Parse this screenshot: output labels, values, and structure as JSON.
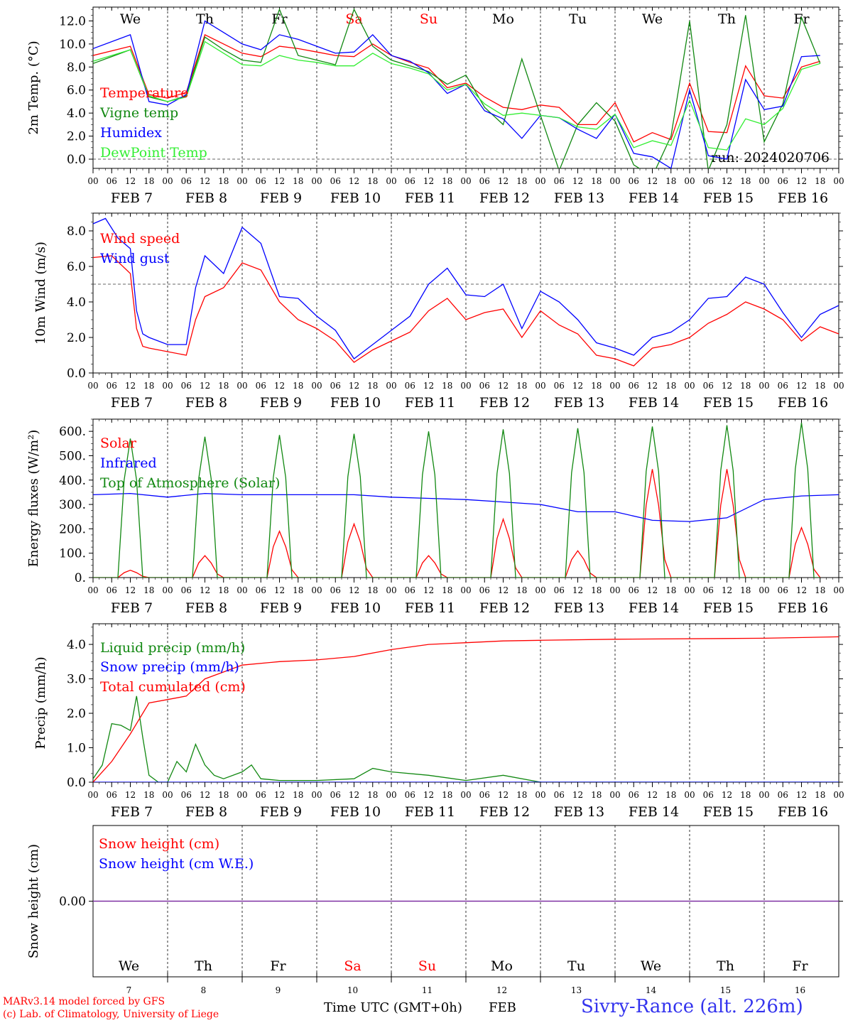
{
  "meta": {
    "run_label": "run: 2024020706",
    "credit_line1": "MARv3.14 model forced by GFS",
    "credit_line2": "(c) Lab. of Climatology, University of Liege",
    "xaxis_title": "Time UTC (GMT+0h)",
    "month_label": "FEB",
    "station": "Sivry-Rance (alt. 226m)"
  },
  "colors": {
    "red": "#ff0000",
    "green": "#118811",
    "lightgreen": "#33ee33",
    "blue": "#0000ff",
    "purple": "#7a2aa0"
  },
  "time_axis": {
    "hour_ticks": [
      "00",
      "06",
      "12",
      "18"
    ],
    "date_labels": [
      "FEB 7",
      "FEB 8",
      "FEB 9",
      "FEB 10",
      "FEB 11",
      "FEB 12",
      "FEB 13",
      "FEB 14",
      "FEB 15",
      "FEB 16"
    ],
    "weekdays": [
      "We",
      "Th",
      "Fr",
      "Sa",
      "Su",
      "Mo",
      "Tu",
      "We",
      "Th",
      "Fr"
    ],
    "weekend_flags": [
      false,
      false,
      false,
      true,
      true,
      false,
      false,
      false,
      false,
      false
    ],
    "day_numbers": [
      "7",
      "8",
      "9",
      "10",
      "11",
      "12",
      "13",
      "14",
      "15",
      "16"
    ]
  },
  "chart_data": [
    {
      "type": "line",
      "ylabel": "2m Temp. (°C)",
      "ylim": [
        -0.8,
        13.2
      ],
      "yticks": [
        0.0,
        2.0,
        4.0,
        6.0,
        8.0,
        10.0,
        12.0
      ],
      "ytick_labels": [
        "0.0",
        "2.0",
        "4.0",
        "6.0",
        "8.0",
        "10.0",
        "12.0"
      ],
      "x_unit": "hours since FEB 7 00 UTC",
      "hline": 0,
      "series": [
        {
          "name": "Temperature",
          "color": "red",
          "x": [
            0,
            12,
            18,
            24,
            30,
            36,
            42,
            48,
            54,
            60,
            66,
            72,
            78,
            84,
            90,
            96,
            102,
            108,
            114,
            120,
            126,
            132,
            138,
            144,
            150,
            156,
            162,
            168,
            174,
            180,
            186,
            192,
            198,
            204,
            210,
            216,
            222,
            228,
            234
          ],
          "y": [
            9.0,
            9.8,
            5.6,
            5.3,
            5.8,
            10.8,
            10.0,
            9.2,
            8.9,
            9.8,
            9.6,
            9.3,
            9.0,
            8.9,
            10.0,
            9.0,
            8.4,
            7.9,
            6.2,
            6.6,
            5.4,
            4.5,
            4.3,
            4.7,
            4.5,
            3.0,
            3.0,
            4.9,
            1.5,
            2.3,
            1.7,
            6.6,
            2.4,
            2.3,
            8.1,
            5.5,
            5.3,
            8.0,
            8.5
          ]
        },
        {
          "name": "Vigne temp",
          "color": "green",
          "x": [
            0,
            12,
            18,
            24,
            30,
            36,
            42,
            48,
            54,
            60,
            66,
            72,
            78,
            84,
            90,
            96,
            102,
            108,
            114,
            120,
            126,
            132,
            138,
            144,
            150,
            156,
            162,
            168,
            174,
            180,
            186,
            192,
            198,
            204,
            210,
            216,
            222,
            228,
            234
          ],
          "y": [
            8.3,
            9.5,
            5.4,
            5.0,
            5.5,
            10.6,
            9.5,
            8.6,
            8.4,
            13.0,
            9.0,
            8.6,
            8.2,
            13.0,
            9.8,
            8.6,
            8.1,
            7.6,
            6.5,
            7.3,
            4.5,
            3.0,
            8.7,
            3.8,
            -1.0,
            3.0,
            4.9,
            3.3,
            -0.5,
            -1.5,
            2.0,
            12.0,
            -1.0,
            3.0,
            12.5,
            1.5,
            4.8,
            12.3,
            8.3
          ]
        },
        {
          "name": "Humidex",
          "color": "blue",
          "x": [
            0,
            12,
            18,
            24,
            30,
            36,
            42,
            48,
            54,
            60,
            66,
            72,
            78,
            84,
            90,
            96,
            102,
            108,
            114,
            120,
            126,
            132,
            138,
            144,
            150,
            156,
            162,
            168,
            174,
            180,
            186,
            192,
            198,
            204,
            210,
            216,
            222,
            228,
            234
          ],
          "y": [
            9.6,
            10.8,
            5.0,
            4.7,
            5.6,
            12.0,
            11.0,
            10.0,
            9.5,
            10.8,
            10.4,
            9.8,
            9.2,
            9.3,
            10.8,
            9.0,
            8.5,
            7.5,
            5.7,
            6.5,
            4.2,
            3.5,
            1.8,
            3.8,
            3.6,
            2.6,
            1.8,
            3.9,
            0.5,
            0.2,
            -0.8,
            6.0,
            0.3,
            0.0,
            6.9,
            4.3,
            4.6,
            8.9,
            9.0
          ]
        },
        {
          "name": "DewPoint Temp",
          "color": "lightgreen",
          "x": [
            0,
            12,
            18,
            24,
            30,
            36,
            42,
            48,
            54,
            60,
            66,
            72,
            78,
            84,
            90,
            96,
            102,
            108,
            114,
            120,
            126,
            132,
            138,
            144,
            150,
            156,
            162,
            168,
            174,
            180,
            186,
            192,
            198,
            204,
            210,
            216,
            222,
            228,
            234
          ],
          "y": [
            8.5,
            9.5,
            5.5,
            5.0,
            5.4,
            10.2,
            9.2,
            8.2,
            8.1,
            9.0,
            8.6,
            8.4,
            8.1,
            8.1,
            9.2,
            8.3,
            7.9,
            7.4,
            6.0,
            6.5,
            4.8,
            3.8,
            4.0,
            3.8,
            3.6,
            2.8,
            2.6,
            3.9,
            1.0,
            1.6,
            1.2,
            5.1,
            1.0,
            0.8,
            3.5,
            3.0,
            4.4,
            7.8,
            8.3
          ]
        }
      ]
    },
    {
      "type": "line",
      "ylabel": "10m Wind (m/s)",
      "ylim": [
        0,
        9.0
      ],
      "yticks": [
        0.0,
        2.0,
        4.0,
        6.0,
        8.0
      ],
      "ytick_labels": [
        "0.0",
        "2.0",
        "4.0",
        "6.0",
        "8.0"
      ],
      "x_unit": "hours since FEB 7 00 UTC",
      "hline": 5,
      "series": [
        {
          "name": "Wind speed",
          "color": "red",
          "x": [
            0,
            6,
            12,
            14,
            16,
            18,
            24,
            30,
            33,
            36,
            42,
            48,
            54,
            60,
            66,
            72,
            78,
            84,
            90,
            96,
            102,
            108,
            114,
            120,
            126,
            132,
            138,
            144,
            150,
            156,
            162,
            168,
            174,
            180,
            186,
            192,
            198,
            204,
            210,
            216,
            222,
            228,
            234,
            240
          ],
          "y": [
            6.5,
            6.6,
            5.6,
            2.5,
            1.5,
            1.4,
            1.2,
            1.0,
            3.0,
            4.3,
            4.8,
            6.2,
            5.8,
            4.0,
            3.0,
            2.5,
            1.8,
            0.6,
            1.3,
            1.8,
            2.3,
            3.5,
            4.2,
            3.0,
            3.4,
            3.6,
            2.0,
            3.5,
            2.7,
            2.2,
            1.0,
            0.8,
            0.4,
            1.4,
            1.6,
            2.0,
            2.8,
            3.3,
            4.0,
            3.6,
            3.0,
            1.8,
            2.6,
            2.2
          ]
        },
        {
          "name": "Wind gust",
          "color": "blue",
          "x": [
            0,
            4,
            8,
            12,
            14,
            16,
            18,
            24,
            30,
            33,
            36,
            42,
            48,
            54,
            60,
            66,
            72,
            78,
            84,
            90,
            96,
            102,
            108,
            114,
            120,
            126,
            132,
            138,
            144,
            150,
            156,
            162,
            168,
            174,
            180,
            186,
            192,
            198,
            204,
            210,
            216,
            222,
            228,
            234,
            240
          ],
          "y": [
            8.4,
            8.7,
            7.6,
            7.0,
            3.5,
            2.2,
            2.0,
            1.6,
            1.6,
            4.8,
            6.6,
            5.6,
            8.2,
            7.3,
            4.3,
            4.2,
            3.2,
            2.4,
            0.8,
            1.6,
            2.4,
            3.2,
            5.0,
            5.9,
            4.4,
            4.3,
            5.0,
            2.5,
            4.6,
            4.0,
            3.0,
            1.7,
            1.4,
            1.0,
            2.0,
            2.3,
            3.0,
            4.2,
            4.3,
            5.4,
            5.0,
            3.4,
            2.0,
            3.3,
            3.8
          ]
        }
      ]
    },
    {
      "type": "line",
      "ylabel": "Energy fluxes (W/m²)",
      "ylim": [
        0,
        650
      ],
      "yticks": [
        0,
        100,
        200,
        300,
        400,
        500,
        600
      ],
      "ytick_labels": [
        "0.",
        "100.",
        "200.",
        "300.",
        "400.",
        "500.",
        "600."
      ],
      "x_unit": "hours since FEB 7 00 UTC",
      "series": [
        {
          "name": "Solar",
          "color": "red",
          "x": [
            0,
            8,
            10,
            12,
            14,
            16,
            18
          ],
          "y": [
            0,
            0,
            20,
            30,
            20,
            5,
            0
          ],
          "daily_peaks": [
            30,
            90,
            190,
            220,
            90,
            240,
            110,
            445,
            445,
            205
          ],
          "daily_offsets_h": [
            0,
            24,
            48,
            72,
            96,
            120,
            144,
            168,
            192,
            216
          ]
        },
        {
          "name": "Infrared",
          "color": "blue",
          "x": [
            0,
            12,
            24,
            36,
            48,
            60,
            72,
            84,
            96,
            108,
            120,
            132,
            144,
            156,
            168,
            180,
            192,
            204,
            216,
            228,
            240
          ],
          "y": [
            340,
            345,
            330,
            345,
            340,
            340,
            340,
            340,
            330,
            325,
            320,
            310,
            300,
            270,
            270,
            235,
            230,
            245,
            320,
            335,
            340
          ]
        },
        {
          "name": "Top of Atmosphere (Solar)",
          "color": "green",
          "x": [
            0,
            8,
            10,
            12,
            14,
            16,
            18
          ],
          "y": [
            0,
            0,
            400,
            570,
            400,
            0,
            0
          ],
          "daily_peaks": [
            570,
            578,
            585,
            590,
            600,
            608,
            613,
            620,
            625,
            635
          ],
          "daily_offsets_h": [
            0,
            24,
            48,
            72,
            96,
            120,
            144,
            168,
            192,
            216
          ]
        }
      ]
    },
    {
      "type": "line",
      "ylabel": "Precip (mm/h)",
      "ylim": [
        0,
        4.6
      ],
      "yticks": [
        0.0,
        1.0,
        2.0,
        3.0,
        4.0
      ],
      "ytick_labels": [
        "0.0",
        "1.0",
        "2.0",
        "3.0",
        "4.0"
      ],
      "x_unit": "hours since FEB 7 00 UTC",
      "series": [
        {
          "name": "Liquid precip (mm/h)",
          "color": "green",
          "x": [
            0,
            3,
            6,
            9,
            12,
            14,
            16,
            18,
            21,
            24,
            27,
            30,
            33,
            36,
            39,
            42,
            48,
            51,
            54,
            60,
            72,
            84,
            90,
            96,
            108,
            120,
            132,
            144,
            168,
            240
          ],
          "y": [
            0.1,
            0.5,
            1.7,
            1.65,
            1.5,
            2.5,
            1.3,
            0.2,
            0.0,
            0.0,
            0.6,
            0.3,
            1.1,
            0.5,
            0.2,
            0.1,
            0.3,
            0.5,
            0.1,
            0.05,
            0.05,
            0.1,
            0.4,
            0.3,
            0.2,
            0.05,
            0.2,
            0.0,
            0.0,
            0.0
          ]
        },
        {
          "name": "Snow precip (mm/h)",
          "color": "blue",
          "x": [
            0,
            240
          ],
          "y": [
            0,
            0
          ]
        },
        {
          "name": "Total cumulated (cm)",
          "color": "red",
          "x": [
            0,
            6,
            12,
            18,
            24,
            30,
            36,
            42,
            48,
            60,
            72,
            84,
            96,
            108,
            120,
            132,
            144,
            168,
            216,
            240
          ],
          "y": [
            0.0,
            0.6,
            1.4,
            2.3,
            2.4,
            2.5,
            3.0,
            3.2,
            3.4,
            3.5,
            3.55,
            3.65,
            3.85,
            4.0,
            4.05,
            4.1,
            4.12,
            4.15,
            4.18,
            4.22
          ]
        }
      ]
    },
    {
      "type": "line",
      "ylabel": "Snow height (cm)",
      "ylim": [
        -1,
        1
      ],
      "yticks": [
        0.0
      ],
      "ytick_labels": [
        "0.00"
      ],
      "x_unit": "hours since FEB 7 00 UTC",
      "series": [
        {
          "name": "Snow height (cm)",
          "color": "red",
          "x": [
            0,
            240
          ],
          "y": [
            0,
            0
          ]
        },
        {
          "name": "Snow height (cm W.E.)",
          "color": "blue",
          "x": [
            0,
            240
          ],
          "y": [
            0,
            0
          ]
        }
      ]
    }
  ]
}
